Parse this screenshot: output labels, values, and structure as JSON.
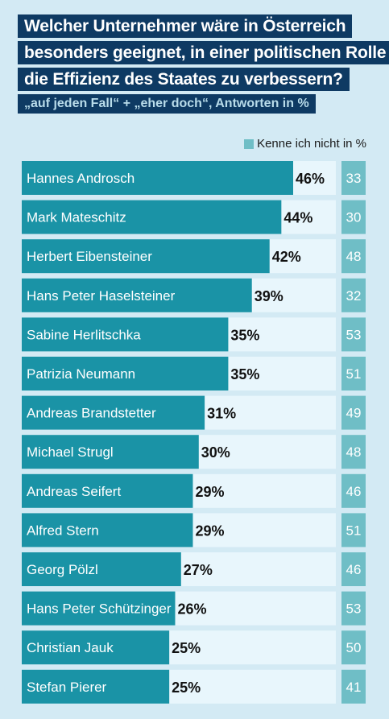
{
  "header": {
    "title_lines": [
      "Welcher Unternehmer wäre in Österreich",
      "besonders geeignet, in einer politischen Rolle",
      "die Effizienz des Staates zu verbessern?"
    ],
    "subtitle": "„auf jeden Fall“ + „eher doch“, Antworten in %"
  },
  "legend": {
    "label": "Kenne ich nicht in %"
  },
  "colors": {
    "bar": "#1a93a6",
    "track": "#e8f6fc",
    "unknown_box": "#6fbec6",
    "title_bg": "#0e3a63",
    "background": "#d3eaf4"
  },
  "chart_data": {
    "type": "bar",
    "orientation": "horizontal",
    "categories": [
      "Hannes Androsch",
      "Mark Mateschitz",
      "Herbert Eibensteiner",
      "Hans Peter Haselsteiner",
      "Sabine Herlitschka",
      "Patrizia Neumann",
      "Andreas Brandstetter",
      "Michael Strugl",
      "Andreas Seifert",
      "Alfred Stern",
      "Georg Pölzl",
      "Hans Peter Schützinger",
      "Christian Jauk",
      "Stefan Pierer"
    ],
    "series": [
      {
        "name": "",
        "values": [
          46,
          44,
          42,
          39,
          35,
          35,
          31,
          30,
          29,
          29,
          27,
          26,
          25,
          25
        ],
        "labels": [
          "46%",
          "44%",
          "42%",
          "39%",
          "35%",
          "35%",
          "31%",
          "30%",
          "29%",
          "29%",
          "27%",
          "26%",
          "25%",
          "25%"
        ]
      },
      {
        "name": "Kenne ich nicht in %",
        "values": [
          33,
          30,
          48,
          32,
          53,
          51,
          49,
          48,
          46,
          51,
          46,
          53,
          50,
          41
        ],
        "labels": [
          "33",
          "30",
          "48",
          "32",
          "53",
          "51",
          "49",
          "48",
          "46",
          "51",
          "46",
          "53",
          "50",
          "41"
        ]
      }
    ],
    "xlim": [
      0,
      100
    ],
    "grid": false,
    "legend_position": "top-right"
  }
}
